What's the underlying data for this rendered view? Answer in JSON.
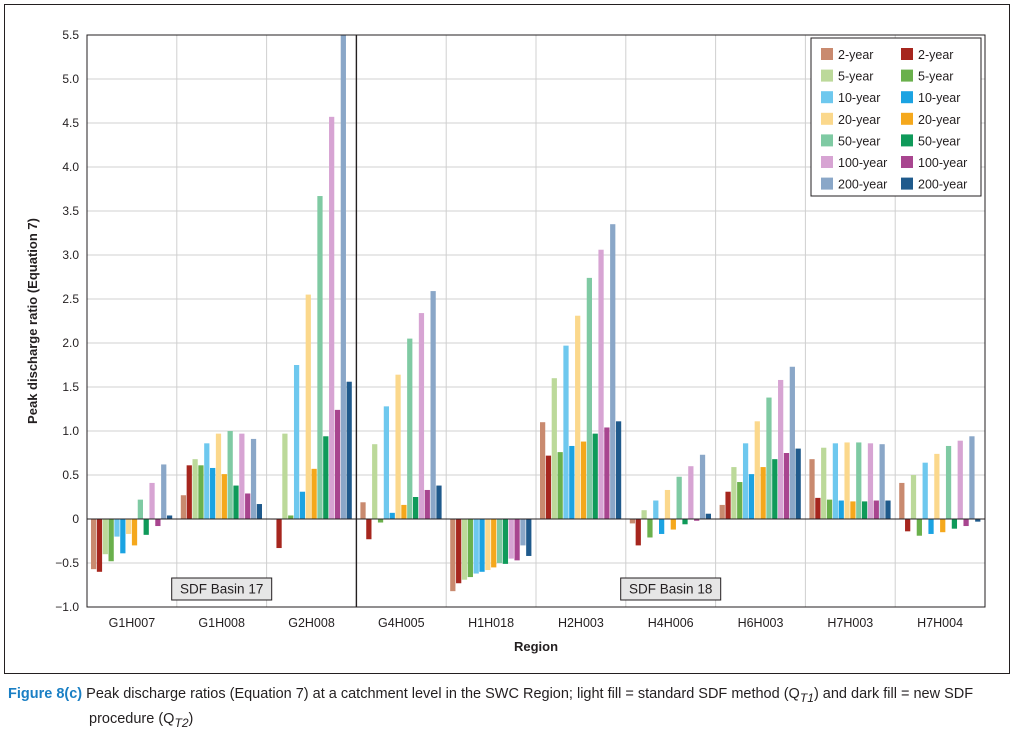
{
  "chart_data": {
    "type": "bar",
    "ylabel": "Peak discharge ratio (Equation 7)",
    "xlabel": "Region",
    "ylim": [
      -1.0,
      5.5
    ],
    "yticks": [
      "−1.0",
      "−0.5",
      "0",
      "0.5",
      "1.0",
      "1.5",
      "2.0",
      "2.5",
      "3.0",
      "3.5",
      "4.0",
      "4.5",
      "5.0",
      "5.5"
    ],
    "grid": true,
    "legend_position": "top-right",
    "categories": [
      "G1H007",
      "G1H008",
      "G2H008",
      "G4H005",
      "H1H018",
      "H2H003",
      "H4H006",
      "H6H003",
      "H7H003",
      "H7H004"
    ],
    "groups": [
      {
        "label": "SDF Basin 17",
        "categories": [
          "G1H007",
          "G1H008",
          "G2H008"
        ]
      },
      {
        "label": "SDF Basin 18",
        "categories": [
          "G4H005",
          "H1H018",
          "H2H003",
          "H4H006",
          "H6H003",
          "H7H003",
          "H7H004"
        ]
      }
    ],
    "series": [
      {
        "name": "2-year",
        "method": "light",
        "color": "#c98a6f",
        "values": [
          -0.57,
          0.27,
          0.0,
          0.19,
          -0.82,
          1.1,
          -0.05,
          0.16,
          0.68,
          0.41
        ]
      },
      {
        "name": "2-year",
        "method": "dark",
        "color": "#a6261e",
        "values": [
          -0.6,
          0.61,
          -0.33,
          -0.23,
          -0.73,
          0.72,
          -0.3,
          0.31,
          0.24,
          -0.14
        ]
      },
      {
        "name": "5-year",
        "method": "light",
        "color": "#bcd99a",
        "values": [
          -0.4,
          0.68,
          0.97,
          0.85,
          -0.69,
          1.6,
          0.1,
          0.59,
          0.81,
          0.5
        ]
      },
      {
        "name": "5-year",
        "method": "dark",
        "color": "#6ab04c",
        "values": [
          -0.48,
          0.61,
          0.04,
          -0.04,
          -0.66,
          0.76,
          -0.21,
          0.42,
          0.22,
          -0.19
        ]
      },
      {
        "name": "10-year",
        "method": "light",
        "color": "#6ec8ee",
        "values": [
          -0.2,
          0.86,
          1.75,
          1.28,
          -0.62,
          1.97,
          0.21,
          0.86,
          0.86,
          0.64
        ]
      },
      {
        "name": "10-year",
        "method": "dark",
        "color": "#1ba3e2",
        "values": [
          -0.39,
          0.58,
          0.31,
          0.07,
          -0.6,
          0.83,
          -0.17,
          0.51,
          0.21,
          -0.17
        ]
      },
      {
        "name": "20-year",
        "method": "light",
        "color": "#fbd88c",
        "values": [
          -0.17,
          0.97,
          2.55,
          1.64,
          -0.58,
          2.31,
          0.33,
          1.11,
          0.87,
          0.74
        ]
      },
      {
        "name": "20-year",
        "method": "dark",
        "color": "#f5a81c",
        "values": [
          -0.3,
          0.51,
          0.57,
          0.16,
          -0.55,
          0.88,
          -0.12,
          0.59,
          0.2,
          -0.15
        ]
      },
      {
        "name": "50-year",
        "method": "light",
        "color": "#7fcaa3",
        "values": [
          0.22,
          1.0,
          3.67,
          2.05,
          -0.5,
          2.74,
          0.48,
          1.38,
          0.87,
          0.83
        ]
      },
      {
        "name": "50-year",
        "method": "dark",
        "color": "#0f9a5a",
        "values": [
          -0.18,
          0.38,
          0.94,
          0.25,
          -0.51,
          0.97,
          -0.06,
          0.68,
          0.2,
          -0.11
        ]
      },
      {
        "name": "100-year",
        "method": "light",
        "color": "#d7a4d3",
        "values": [
          0.41,
          0.97,
          4.57,
          2.34,
          -0.45,
          3.06,
          0.6,
          1.58,
          0.86,
          0.89
        ]
      },
      {
        "name": "100-year",
        "method": "dark",
        "color": "#a8458f",
        "values": [
          -0.08,
          0.29,
          1.24,
          0.33,
          -0.47,
          1.04,
          -0.02,
          0.75,
          0.21,
          -0.08
        ]
      },
      {
        "name": "200-year",
        "method": "light",
        "color": "#8aa7c8",
        "values": [
          0.62,
          0.91,
          5.5,
          2.59,
          -0.3,
          3.35,
          0.73,
          1.73,
          0.85,
          0.94
        ]
      },
      {
        "name": "200-year",
        "method": "dark",
        "color": "#1f5a8c",
        "values": [
          0.04,
          0.17,
          1.56,
          0.38,
          -0.42,
          1.11,
          0.06,
          0.8,
          0.21,
          -0.03
        ]
      }
    ]
  },
  "caption": {
    "label": "Figure 8(c)",
    "text": "Peak discharge ratios (Equation 7) at a catchment level in the SWC Region; light fill = standard SDF method (Q",
    "sub1": "T1",
    "text2": ") and dark fill = new SDF",
    "line2": "procedure (Q",
    "sub2": "T2",
    "line2_end": ")"
  }
}
